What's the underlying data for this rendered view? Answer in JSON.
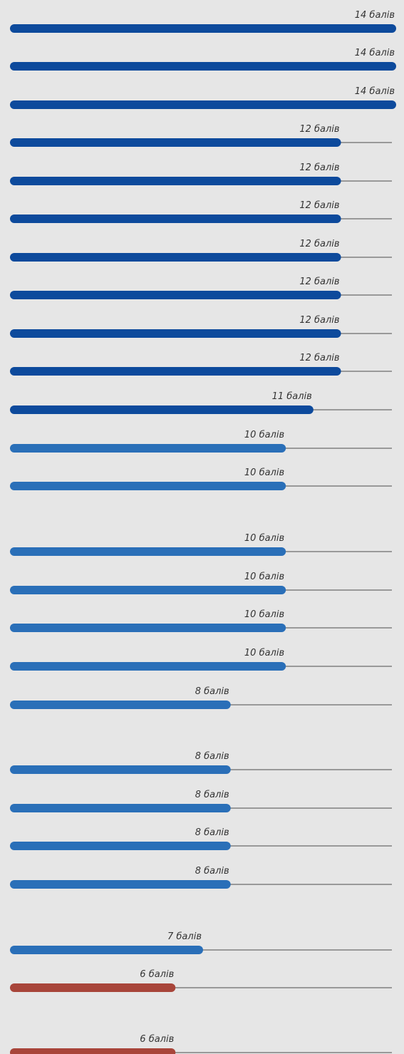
{
  "chart_data": {
    "type": "bar",
    "orientation": "horizontal",
    "max_value": 14,
    "unit_label": "балів",
    "colors": {
      "background": "#e6e6e6",
      "track": "#999999",
      "dark_blue": "#0d4a9c",
      "mid_blue": "#2a6fb8",
      "red": "#a8453a"
    },
    "bars": [
      {
        "value": 14,
        "label": "14 балів",
        "color": "dark_blue"
      },
      {
        "value": 14,
        "label": "14 балів",
        "color": "dark_blue"
      },
      {
        "value": 14,
        "label": "14 балів",
        "color": "dark_blue"
      },
      {
        "value": 12,
        "label": "12 балів",
        "color": "dark_blue"
      },
      {
        "value": 12,
        "label": "12 балів",
        "color": "dark_blue"
      },
      {
        "value": 12,
        "label": "12 балів",
        "color": "dark_blue"
      },
      {
        "value": 12,
        "label": "12 балів",
        "color": "dark_blue"
      },
      {
        "value": 12,
        "label": "12 балів",
        "color": "dark_blue"
      },
      {
        "value": 12,
        "label": "12 балів",
        "color": "dark_blue"
      },
      {
        "value": 12,
        "label": "12 балів",
        "color": "dark_blue"
      },
      {
        "value": 11,
        "label": "11 балів",
        "color": "dark_blue"
      },
      {
        "value": 10,
        "label": "10 балів",
        "color": "mid_blue"
      },
      {
        "value": 10,
        "label": "10 балів",
        "color": "mid_blue"
      },
      {
        "value": 10,
        "label": "10 балів",
        "color": "mid_blue"
      },
      {
        "value": 10,
        "label": "10 балів",
        "color": "mid_blue"
      },
      {
        "value": 10,
        "label": "10 балів",
        "color": "mid_blue"
      },
      {
        "value": 10,
        "label": "10 балів",
        "color": "mid_blue"
      },
      {
        "value": 8,
        "label": "8 балів",
        "color": "mid_blue"
      },
      {
        "value": 8,
        "label": "8 балів",
        "color": "mid_blue"
      },
      {
        "value": 8,
        "label": "8 балів",
        "color": "mid_blue"
      },
      {
        "value": 8,
        "label": "8 балів",
        "color": "mid_blue"
      },
      {
        "value": 8,
        "label": "8 балів",
        "color": "mid_blue"
      },
      {
        "value": 7,
        "label": "7 балів",
        "color": "mid_blue"
      },
      {
        "value": 6,
        "label": "6 балів",
        "color": "red"
      },
      {
        "value": 6,
        "label": "6 балів",
        "color": "red"
      }
    ]
  }
}
